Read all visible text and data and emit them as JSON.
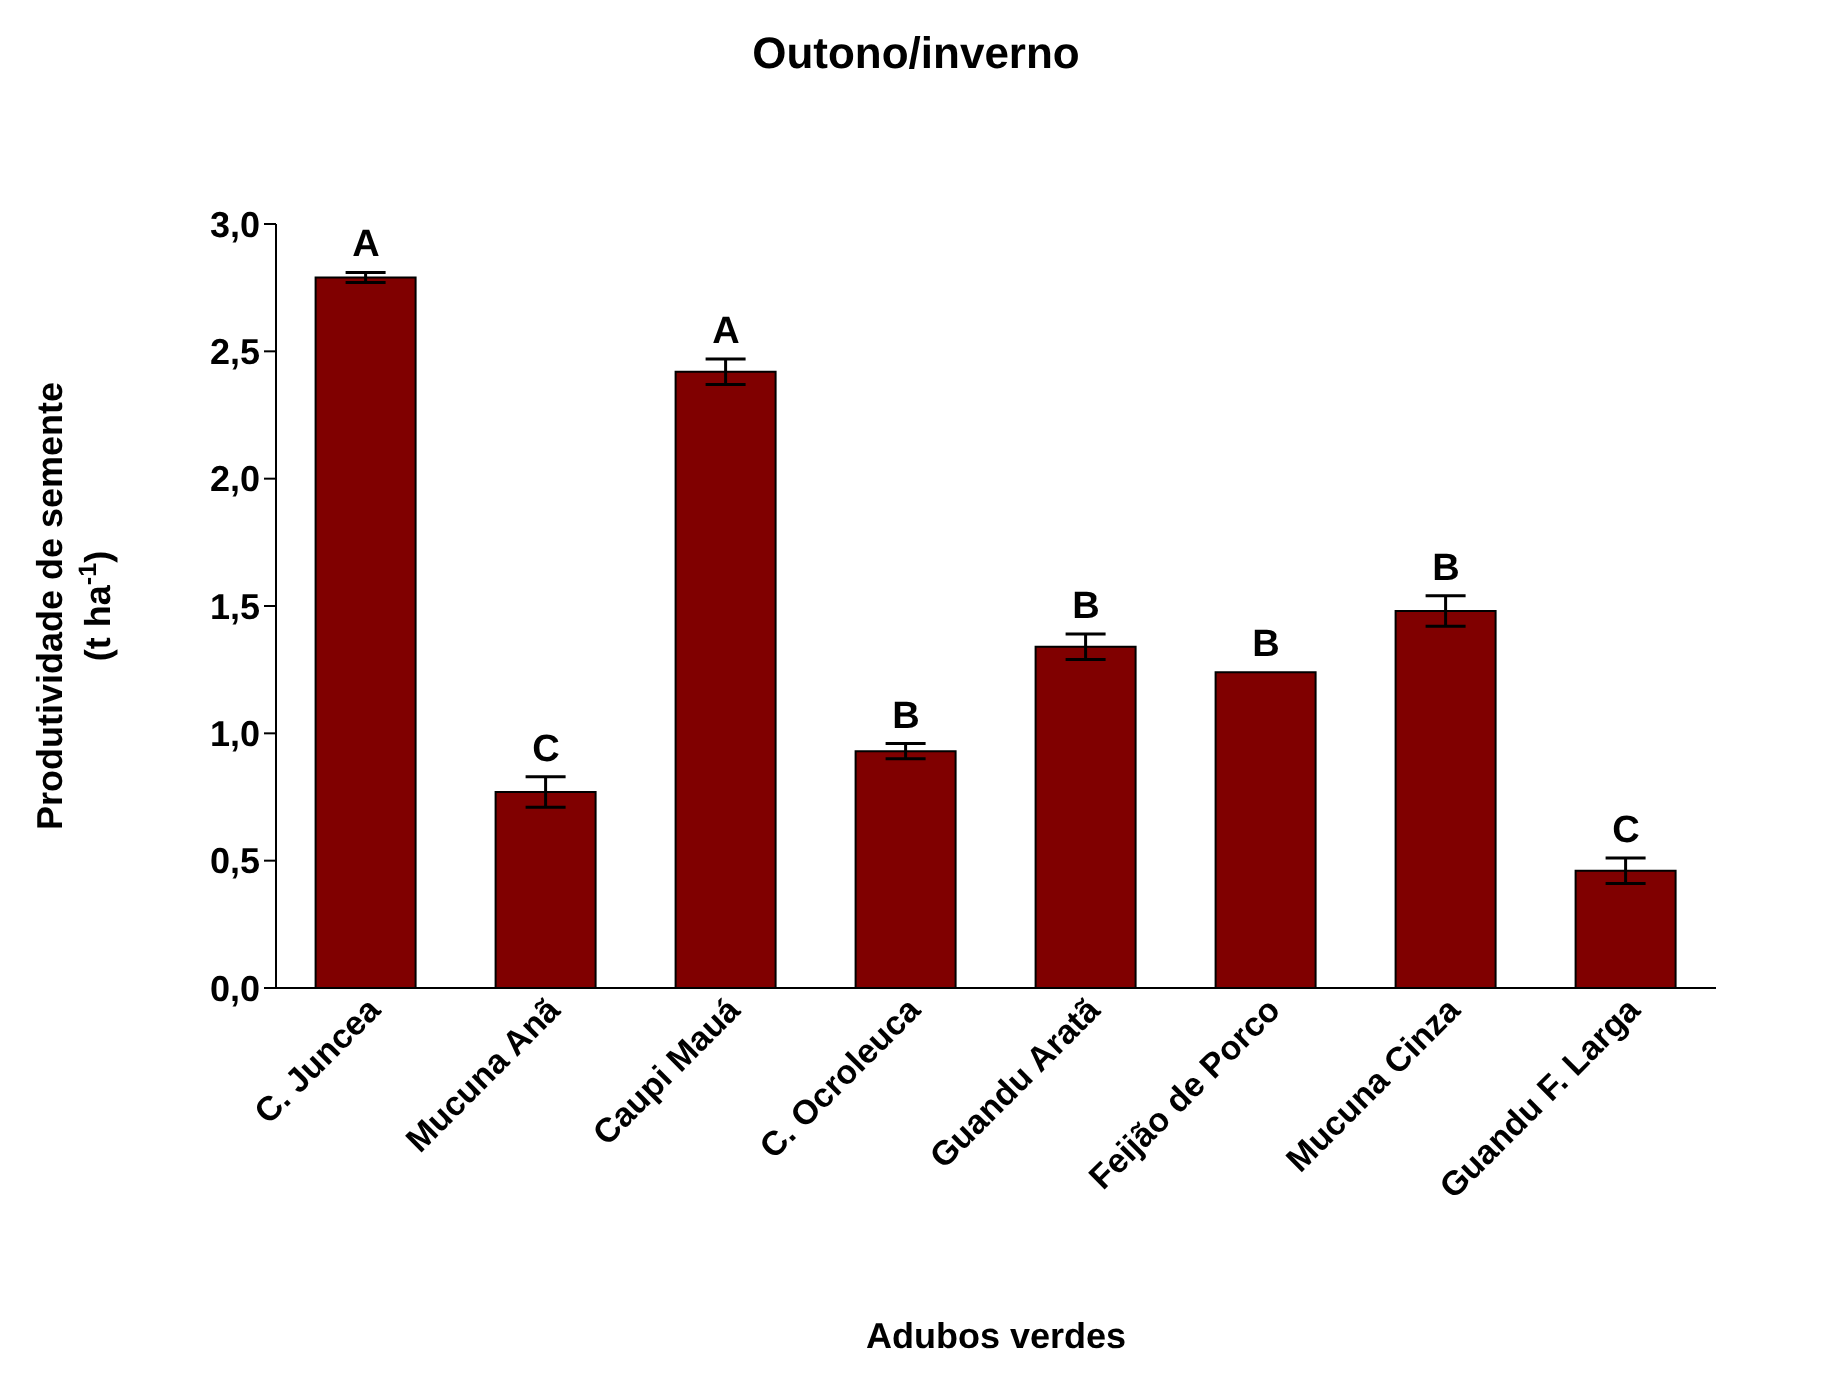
{
  "chart_data": {
    "type": "bar",
    "title": "Outono/inverno",
    "xlabel": "Adubos verdes",
    "ylabel": "Produtividade de semente\n(t ha$^{-1}$)",
    "categories": [
      "C. Juncea",
      "Mucuna Anã",
      "Caupi Mauá",
      "C. Ocroleuca",
      "Guandu Aratã",
      "Feijão de Porco",
      "Mucuna Cinza",
      "Guandu F. Larga"
    ],
    "values": [
      2.79,
      0.77,
      2.42,
      0.93,
      1.34,
      1.24,
      1.48,
      0.46
    ],
    "errors": [
      0.02,
      0.06,
      0.05,
      0.03,
      0.05,
      null,
      0.06,
      0.05
    ],
    "color": "#800000",
    "ylim": [
      0,
      3
    ],
    "yticks": [
      {
        "value": 0,
        "label": "0,0"
      },
      {
        "value": 0.5,
        "label": "0,5"
      },
      {
        "value": 1,
        "label": "1,0"
      },
      {
        "value": 1.5,
        "label": "1,5"
      },
      {
        "value": 2,
        "label": "2,0"
      },
      {
        "value": 2.5,
        "label": "2,5"
      },
      {
        "value": 3,
        "label": "3,0"
      }
    ],
    "grid": false,
    "legend": false,
    "annotations": [
      {
        "text": "A",
        "x": "C. Juncea",
        "y": 2.81
      },
      {
        "text": "C",
        "x": "Mucuna Anã",
        "y": 0.83
      },
      {
        "text": "A",
        "x": "Caupi Mauá",
        "y": 2.47
      },
      {
        "text": "B",
        "x": "C. Ocroleuca",
        "y": 0.96
      },
      {
        "text": "B",
        "x": "Guandu Aratã",
        "y": 1.39
      },
      {
        "text": "B",
        "x": "Feijão de Porco",
        "y": 1.24
      },
      {
        "text": "B",
        "x": "Mucuna Cinza",
        "y": 1.54
      },
      {
        "text": "C",
        "x": "Guandu F. Larga",
        "y": 0.51
      }
    ]
  }
}
